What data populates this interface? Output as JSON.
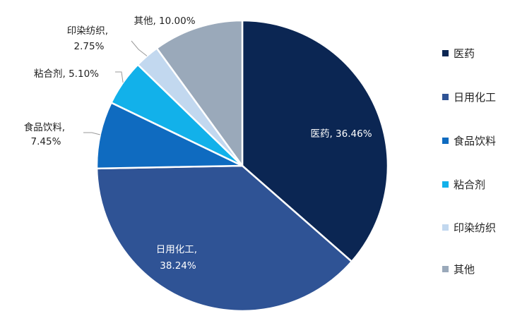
{
  "chart_data": {
    "type": "pie",
    "title": "",
    "slices": [
      {
        "category": "医药",
        "value": 36.46,
        "value_label": "36.46%",
        "color": "#0b2653"
      },
      {
        "category": "日用化工",
        "value": 38.24,
        "value_label": "38.24%",
        "color": "#2f5395"
      },
      {
        "category": "食品饮料",
        "value": 7.45,
        "value_label": "7.45%",
        "color": "#0f6bc0"
      },
      {
        "category": "粘合剂",
        "value": 5.1,
        "value_label": "5.10%",
        "color": "#12b1ea"
      },
      {
        "category": "印染纺织",
        "value": 2.75,
        "value_label": "2.75%",
        "color": "#c2d8ef"
      },
      {
        "category": "其他",
        "value": 10.0,
        "value_label": "10.00%",
        "color": "#9aa9ba"
      }
    ],
    "legend": {
      "position": "right",
      "items": [
        "医药",
        "日用化工",
        "食品饮料",
        "粘合剂",
        "印染纺织",
        "其他"
      ]
    }
  }
}
